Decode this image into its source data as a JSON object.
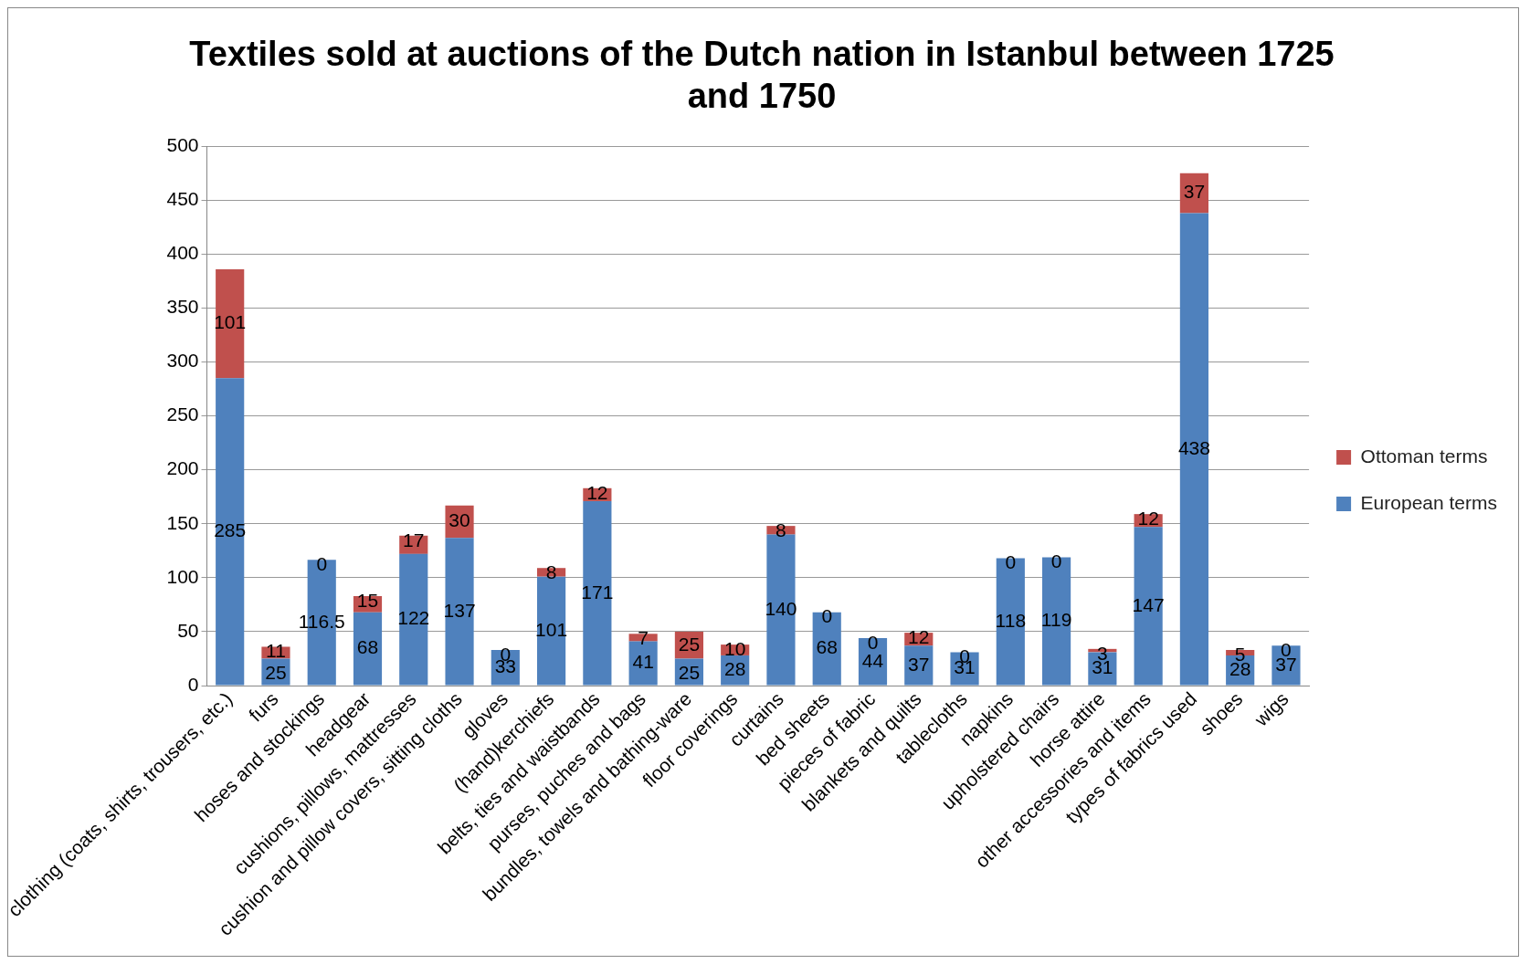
{
  "chart_data": {
    "type": "bar",
    "title": "Textiles sold at auctions of the Dutch nation in Istanbul between 1725 and 1750",
    "stacked": true,
    "categories": [
      "clothing (coats, shirts, trousers, etc.)",
      "furs",
      "hoses and stockings",
      "headgear",
      "cushions, pillows, mattresses",
      "cushion and pillow covers, sitting cloths",
      "gloves",
      "(hand)kerchiefs",
      "belts, ties and waistbands",
      "purses, puches and bags",
      "bundles, towels and bathing-ware",
      "floor coverings",
      "curtains",
      "bed sheets",
      "pieces of fabric",
      "blankets and quilts",
      "tablecloths",
      "napkins",
      "upholstered chairs",
      "horse attire",
      "other accessories and items",
      "types of fabrics used",
      "shoes",
      "wigs"
    ],
    "series": [
      {
        "name": "European terms",
        "color": "#4f81bd",
        "values": [
          285,
          25,
          116.5,
          68,
          122,
          137,
          33,
          101,
          171,
          41,
          25,
          28,
          140,
          68,
          44,
          37,
          31,
          118,
          119,
          31,
          147,
          438,
          28,
          37
        ]
      },
      {
        "name": "Ottoman terms",
        "color": "#c0504d",
        "values": [
          101,
          11,
          0,
          15,
          17,
          30,
          0,
          8,
          12,
          7,
          25,
          10,
          8,
          0,
          0,
          12,
          0,
          0,
          0,
          3,
          12,
          37,
          5,
          0
        ]
      }
    ],
    "ylim": [
      0,
      500
    ],
    "yticks": [
      0,
      50,
      100,
      150,
      200,
      250,
      300,
      350,
      400,
      450,
      500
    ],
    "grid": "y",
    "legend": "right",
    "data_labels": true
  }
}
